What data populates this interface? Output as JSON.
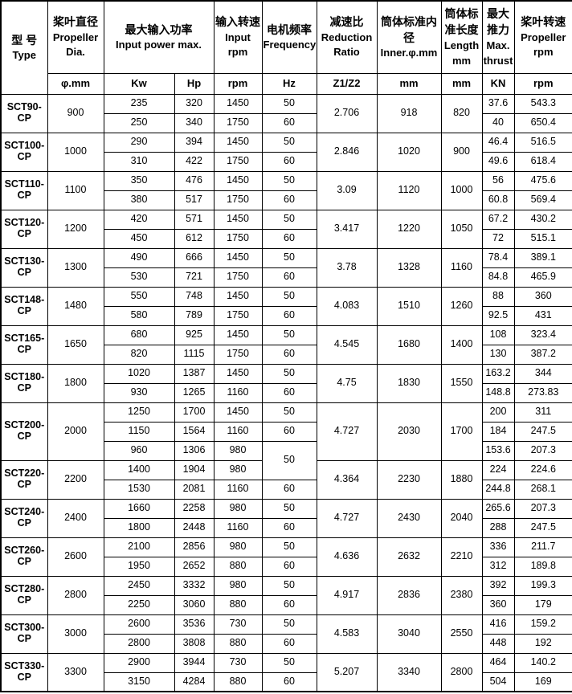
{
  "table": {
    "header": {
      "cols": [
        {
          "zh": "型 号",
          "en": "Type"
        },
        {
          "zh": "桨叶直径",
          "en": "Propeller Dia."
        },
        {
          "zh": "最大输入功率",
          "en": "Input power max."
        },
        {
          "zh": "输入转速",
          "en": "Input rpm"
        },
        {
          "zh": "电机频率",
          "en": "Frequency"
        },
        {
          "zh": "减速比",
          "en": "Reduction Ratio"
        },
        {
          "zh": "筒体标准内径",
          "en": "Inner.φ.mm"
        },
        {
          "zh": "筒体标准长度",
          "en": "Length mm"
        },
        {
          "zh": "最大推力",
          "en": "Max. thrust"
        },
        {
          "zh": "桨叶转速",
          "en": "Propeller rpm"
        }
      ],
      "units": [
        "φ.mm",
        "Kw",
        "Hp",
        "rpm",
        "Hz",
        "Z1/Z2",
        "mm",
        "mm",
        "KN",
        "rpm"
      ]
    },
    "groups": [
      {
        "model": "SCT90-CP",
        "dia": "900",
        "ratio": "2.706",
        "inner": "918",
        "length": "820",
        "rows": [
          {
            "kw": "235",
            "hp": "320",
            "rpm": "1450",
            "hz": "50",
            "thrust": "37.6",
            "prop_rpm": "543.3"
          },
          {
            "kw": "250",
            "hp": "340",
            "rpm": "1750",
            "hz": "60",
            "thrust": "40",
            "prop_rpm": "650.4"
          }
        ]
      },
      {
        "model": "SCT100-CP",
        "dia": "1000",
        "ratio": "2.846",
        "inner": "1020",
        "length": "900",
        "rows": [
          {
            "kw": "290",
            "hp": "394",
            "rpm": "1450",
            "hz": "50",
            "thrust": "46.4",
            "prop_rpm": "516.5"
          },
          {
            "kw": "310",
            "hp": "422",
            "rpm": "1750",
            "hz": "60",
            "thrust": "49.6",
            "prop_rpm": "618.4"
          }
        ]
      },
      {
        "model": "SCT110-CP",
        "dia": "1100",
        "ratio": "3.09",
        "inner": "1120",
        "length": "1000",
        "rows": [
          {
            "kw": "350",
            "hp": "476",
            "rpm": "1450",
            "hz": "50",
            "thrust": "56",
            "prop_rpm": "475.6"
          },
          {
            "kw": "380",
            "hp": "517",
            "rpm": "1750",
            "hz": "60",
            "thrust": "60.8",
            "prop_rpm": "569.4"
          }
        ]
      },
      {
        "model": "SCT120-CP",
        "dia": "1200",
        "ratio": "3.417",
        "inner": "1220",
        "length": "1050",
        "rows": [
          {
            "kw": "420",
            "hp": "571",
            "rpm": "1450",
            "hz": "50",
            "thrust": "67.2",
            "prop_rpm": "430.2"
          },
          {
            "kw": "450",
            "hp": "612",
            "rpm": "1750",
            "hz": "60",
            "thrust": "72",
            "prop_rpm": "515.1"
          }
        ]
      },
      {
        "model": "SCT130-CP",
        "dia": "1300",
        "ratio": "3.78",
        "inner": "1328",
        "length": "1160",
        "rows": [
          {
            "kw": "490",
            "hp": "666",
            "rpm": "1450",
            "hz": "50",
            "thrust": "78.4",
            "prop_rpm": "389.1"
          },
          {
            "kw": "530",
            "hp": "721",
            "rpm": "1750",
            "hz": "60",
            "thrust": "84.8",
            "prop_rpm": "465.9"
          }
        ]
      },
      {
        "model": "SCT148-CP",
        "dia": "1480",
        "ratio": "4.083",
        "inner": "1510",
        "length": "1260",
        "rows": [
          {
            "kw": "550",
            "hp": "748",
            "rpm": "1450",
            "hz": "50",
            "thrust": "88",
            "prop_rpm": "360"
          },
          {
            "kw": "580",
            "hp": "789",
            "rpm": "1750",
            "hz": "60",
            "thrust": "92.5",
            "prop_rpm": "431"
          }
        ]
      },
      {
        "model": "SCT165-CP",
        "dia": "1650",
        "ratio": "4.545",
        "inner": "1680",
        "length": "1400",
        "rows": [
          {
            "kw": "680",
            "hp": "925",
            "rpm": "1450",
            "hz": "50",
            "thrust": "108",
            "prop_rpm": "323.4"
          },
          {
            "kw": "820",
            "hp": "1115",
            "rpm": "1750",
            "hz": "60",
            "thrust": "130",
            "prop_rpm": "387.2"
          }
        ]
      },
      {
        "model": "SCT180-CP",
        "dia": "1800",
        "ratio": "4.75",
        "inner": "1830",
        "length": "1550",
        "rows": [
          {
            "kw": "1020",
            "hp": "1387",
            "rpm": "1450",
            "hz": "50",
            "thrust": "163.2",
            "prop_rpm": "344"
          },
          {
            "kw": "930",
            "hp": "1265",
            "rpm": "1160",
            "hz": "60",
            "thrust": "148.8",
            "prop_rpm": "273.83"
          }
        ]
      },
      {
        "model": "SCT200-CP",
        "dia": "2000",
        "ratio": "4.727",
        "inner": "2030",
        "length": "1700",
        "rows": [
          {
            "kw": "1250",
            "hp": "1700",
            "rpm": "1450",
            "hz": "50",
            "thrust": "200",
            "prop_rpm": "311"
          },
          {
            "kw": "1150",
            "hp": "1564",
            "rpm": "1160",
            "hz": "60",
            "thrust": "184",
            "prop_rpm": "247.5"
          },
          {
            "kw": "960",
            "hp": "1306",
            "rpm": "980",
            "hz": "50",
            "hz_rowspan": 2,
            "thrust": "153.6",
            "prop_rpm": "207.3"
          }
        ]
      },
      {
        "model": "SCT220-CP",
        "dia": "2200",
        "ratio": "4.364",
        "inner": "2230",
        "length": "1880",
        "rows": [
          {
            "kw": "1400",
            "hp": "1904",
            "rpm": "980",
            "hz": null,
            "thrust": "224",
            "prop_rpm": "224.6"
          },
          {
            "kw": "1530",
            "hp": "2081",
            "rpm": "1160",
            "hz": "60",
            "thrust": "244.8",
            "prop_rpm": "268.1"
          }
        ]
      },
      {
        "model": "SCT240-CP",
        "dia": "2400",
        "ratio": "4.727",
        "inner": "2430",
        "length": "2040",
        "rows": [
          {
            "kw": "1660",
            "hp": "2258",
            "rpm": "980",
            "hz": "50",
            "thrust": "265.6",
            "prop_rpm": "207.3"
          },
          {
            "kw": "1800",
            "hp": "2448",
            "rpm": "1160",
            "hz": "60",
            "thrust": "288",
            "prop_rpm": "247.5"
          }
        ]
      },
      {
        "model": "SCT260-CP",
        "dia": "2600",
        "ratio": "4.636",
        "inner": "2632",
        "length": "2210",
        "rows": [
          {
            "kw": "2100",
            "hp": "2856",
            "rpm": "980",
            "hz": "50",
            "thrust": "336",
            "prop_rpm": "211.7"
          },
          {
            "kw": "1950",
            "hp": "2652",
            "rpm": "880",
            "hz": "60",
            "thrust": "312",
            "prop_rpm": "189.8"
          }
        ]
      },
      {
        "model": "SCT280-CP",
        "dia": "2800",
        "ratio": "4.917",
        "inner": "2836",
        "length": "2380",
        "rows": [
          {
            "kw": "2450",
            "hp": "3332",
            "rpm": "980",
            "hz": "50",
            "thrust": "392",
            "prop_rpm": "199.3"
          },
          {
            "kw": "2250",
            "hp": "3060",
            "rpm": "880",
            "hz": "60",
            "thrust": "360",
            "prop_rpm": "179"
          }
        ]
      },
      {
        "model": "SCT300-CP",
        "dia": "3000",
        "ratio": "4.583",
        "inner": "3040",
        "length": "2550",
        "rows": [
          {
            "kw": "2600",
            "hp": "3536",
            "rpm": "730",
            "hz": "50",
            "thrust": "416",
            "prop_rpm": "159.2"
          },
          {
            "kw": "2800",
            "hp": "3808",
            "rpm": "880",
            "hz": "60",
            "thrust": "448",
            "prop_rpm": "192"
          }
        ]
      },
      {
        "model": "SCT330-CP",
        "dia": "3300",
        "ratio": "5.207",
        "inner": "3340",
        "length": "2800",
        "rows": [
          {
            "kw": "2900",
            "hp": "3944",
            "rpm": "730",
            "hz": "50",
            "thrust": "464",
            "prop_rpm": "140.2"
          },
          {
            "kw": "3150",
            "hp": "4284",
            "rpm": "880",
            "hz": "60",
            "thrust": "504",
            "prop_rpm": "169"
          }
        ]
      }
    ]
  }
}
